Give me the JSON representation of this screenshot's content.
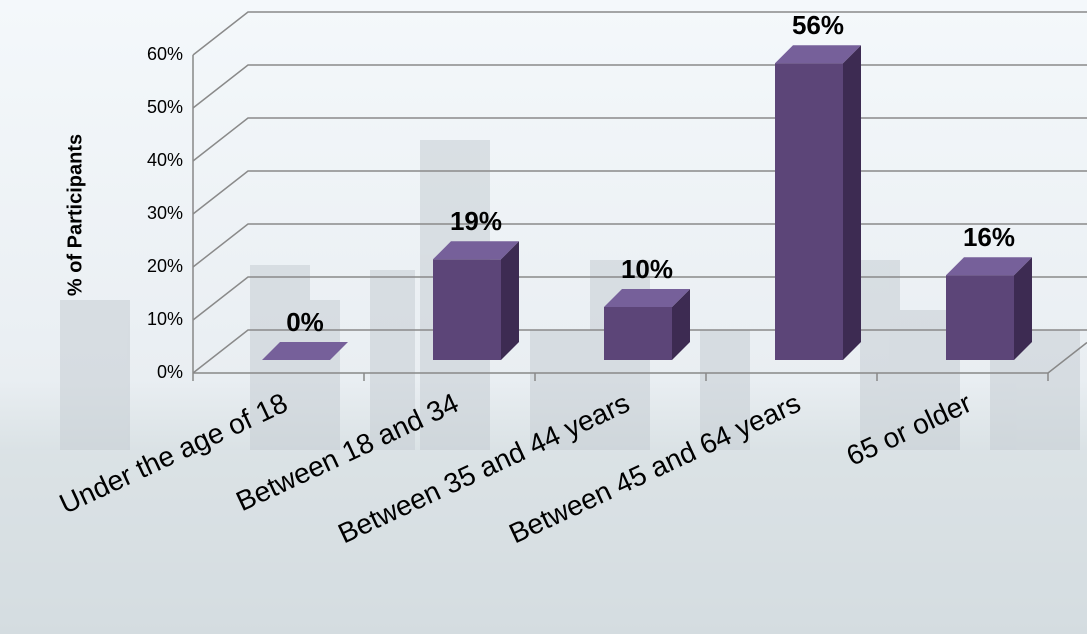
{
  "chart_data": {
    "type": "bar3d",
    "y_label": "% of Participants",
    "categories": [
      "Under the age of 18",
      "Between 18 and 34",
      "Between 35 and 44 years",
      "Between 45 and 64 years",
      "65 or older"
    ],
    "values": [
      0,
      19,
      10,
      56,
      16
    ],
    "value_labels": [
      "0%",
      "19%",
      "10%",
      "56%",
      "16%"
    ],
    "color": "#5c4578",
    "ylim": [
      0,
      60
    ],
    "yticks": [
      {
        "value": 0,
        "label": "0%"
      },
      {
        "value": 10,
        "label": "10%"
      },
      {
        "value": 20,
        "label": "20%"
      },
      {
        "value": 30,
        "label": "30%"
      },
      {
        "value": 40,
        "label": "40%"
      },
      {
        "value": 50,
        "label": "50%"
      },
      {
        "value": 60,
        "label": "60%"
      }
    ],
    "grid": true
  }
}
